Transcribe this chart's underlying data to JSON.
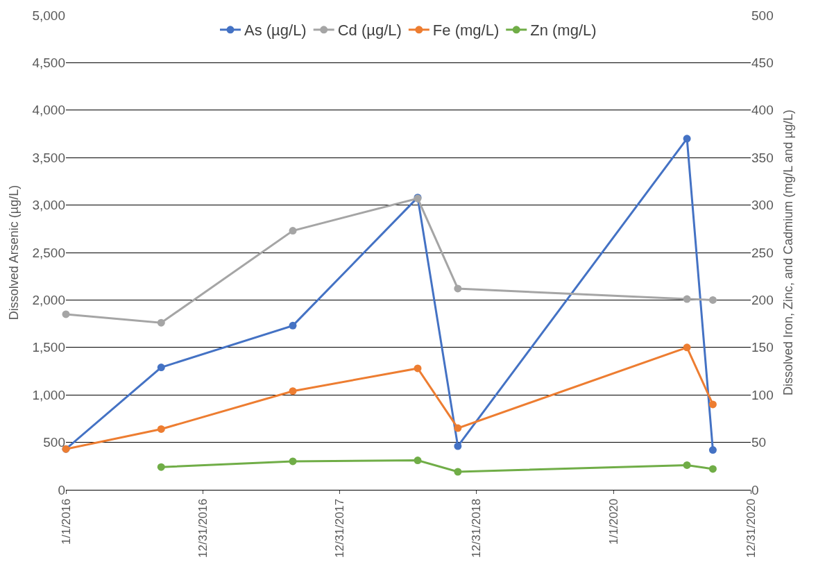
{
  "chart_data": {
    "type": "line",
    "ylabel": "Dissolved Arsenic (µg/L)",
    "y2label": "Dissolved Iron, Zinc, and Cadmium (mg/L and µg/L)",
    "x": [
      "2016-01-01",
      "2016-09-11",
      "2017-08-28",
      "2018-07-27",
      "2018-11-11",
      "2020-07-14",
      "2020-09-21"
    ],
    "series": [
      {
        "name": "As (µg/L)",
        "color": "#4472c4",
        "values": [
          430,
          1290,
          1730,
          3080,
          460,
          3700,
          420
        ]
      },
      {
        "name": "Cd (µg/L)",
        "color": "#a5a5a5",
        "axis": "y2",
        "values": [
          185,
          176,
          273,
          307,
          212,
          201,
          200
        ]
      },
      {
        "name": "Fe (mg/L)",
        "color": "#ed7d31",
        "axis": "y2",
        "values": [
          43,
          64,
          104,
          128,
          65,
          150,
          90
        ]
      },
      {
        "name": "Zn (mg/L)",
        "color": "#70ad47",
        "axis": "y2",
        "values": [
          null,
          24,
          30,
          31,
          19,
          26,
          22
        ]
      }
    ],
    "xlim": [
      "2016-01-01",
      "2020-12-31"
    ],
    "xticks": [
      {
        "value": "2016-01-01",
        "label": "1/1/2016"
      },
      {
        "value": "2016-12-31",
        "label": "12/31/2016"
      },
      {
        "value": "2017-12-31",
        "label": "12/31/2017"
      },
      {
        "value": "2018-12-31",
        "label": "12/31/2018"
      },
      {
        "value": "2020-01-01",
        "label": "1/1/2020"
      },
      {
        "value": "2020-12-31",
        "label": "12/31/2020"
      }
    ],
    "ylim": [
      0,
      5000
    ],
    "yticks": [
      {
        "value": 0,
        "label": "0"
      },
      {
        "value": 500,
        "label": "500"
      },
      {
        "value": 1000,
        "label": "1,000"
      },
      {
        "value": 1500,
        "label": "1,500"
      },
      {
        "value": 2000,
        "label": "2,000"
      },
      {
        "value": 2500,
        "label": "2,500"
      },
      {
        "value": 3000,
        "label": "3,000"
      },
      {
        "value": 3500,
        "label": "3,500"
      },
      {
        "value": 4000,
        "label": "4,000"
      },
      {
        "value": 4500,
        "label": "4,500"
      },
      {
        "value": 5000,
        "label": "5,000"
      }
    ],
    "y2lim": [
      0,
      500
    ],
    "y2ticks": [
      0,
      50,
      100,
      150,
      200,
      250,
      300,
      350,
      400,
      450,
      500
    ],
    "grid": "y",
    "legend": "top",
    "marker": "circle",
    "line_style": "solid"
  }
}
